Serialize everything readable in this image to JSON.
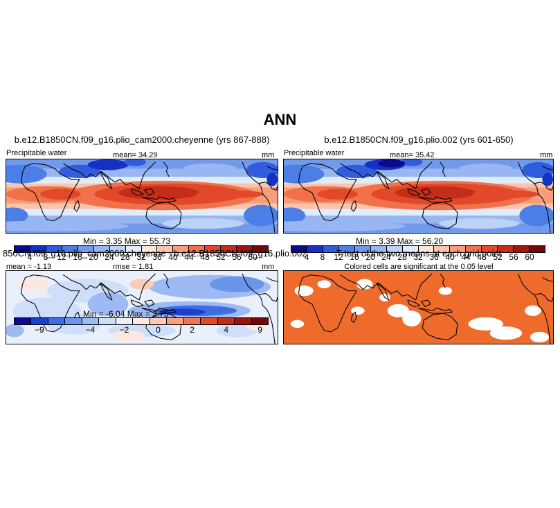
{
  "main_title": "ANN",
  "panels": {
    "p1": {
      "title": "b.e12.B1850CN.f09_g16.plio_cam2000.cheyenne (yrs 867-888)",
      "left_label": "Precipitable water",
      "mean_text": "mean=  34.29",
      "units": "mm",
      "minmax_text": "Min =    3.35  Max =    55.73"
    },
    "p2": {
      "title": "b.e12.B1850CN.f09_g16.plio.002 (yrs 601-650)",
      "left_label": "Precipitable water",
      "mean_text": "mean=  35.42",
      "units": "mm",
      "minmax_text": "Min =    3.39  Max =    56.20"
    },
    "p3": {
      "title": "850CN.f09_g16.plio_cam2000.cheyenne - b.e12.B1850CN.f09_g16.plio.002",
      "mean_text": "mean =  -1.13",
      "rmse_text": "rmse =   1.81",
      "units": "mm",
      "minmax_text": "Min =   -6.04  Max =    3.75"
    },
    "p4": {
      "title": "T-test of the two means at each grid point",
      "subtitle": "Colored cells are significant at the 0.05 level"
    }
  },
  "chart_data": [
    {
      "type": "heatmap",
      "panel": "p1",
      "title": "b.e12.B1850CN.f09_g16.plio_cam2000.cheyenne (yrs 867-888)",
      "variable": "Precipitable water",
      "units": "mm",
      "mean": 34.29,
      "min": 3.35,
      "max": 55.73,
      "levels": [
        4,
        8,
        12,
        16,
        20,
        24,
        28,
        32,
        36,
        40,
        44,
        48,
        52,
        56,
        60
      ],
      "colors": [
        "#0a0a8f",
        "#1531c4",
        "#2f5ddd",
        "#4b7fe6",
        "#7199ec",
        "#97b6f2",
        "#bcd2f6",
        "#e1ecfb",
        "#fde6dc",
        "#fbc4ac",
        "#f79d79",
        "#f0714a",
        "#e2482a",
        "#c42d19",
        "#9e160d",
        "#700a08"
      ]
    },
    {
      "type": "heatmap",
      "panel": "p2",
      "title": "b.e12.B1850CN.f09_g16.plio.002 (yrs 601-650)",
      "variable": "Precipitable water",
      "units": "mm",
      "mean": 35.42,
      "min": 3.39,
      "max": 56.2,
      "levels": [
        4,
        8,
        12,
        16,
        20,
        24,
        28,
        32,
        36,
        40,
        44,
        48,
        52,
        56,
        60
      ],
      "colors": [
        "#0a0a8f",
        "#1531c4",
        "#2f5ddd",
        "#4b7fe6",
        "#7199ec",
        "#97b6f2",
        "#bcd2f6",
        "#e1ecfb",
        "#fde6dc",
        "#fbc4ac",
        "#f79d79",
        "#f0714a",
        "#e2482a",
        "#c42d19",
        "#9e160d",
        "#700a08"
      ]
    },
    {
      "type": "heatmap",
      "panel": "p3",
      "title": "850CN.f09_g16.plio_cam2000.cheyenne - b.e12.B1850CN.f09_g16.plio.002",
      "units": "mm",
      "mean": -1.13,
      "rmse": 1.81,
      "min": -6.04,
      "max": 3.75,
      "levels": [
        -9,
        -4,
        -2,
        0,
        2,
        4,
        9
      ],
      "colors": [
        "#0a0a8f",
        "#1d40cc",
        "#3d6ddf",
        "#6b95ea",
        "#9dbaf2",
        "#cfdff9",
        "#e9f0fc",
        "#fde8df",
        "#fbcbb6",
        "#f7a27f",
        "#ef7650",
        "#e04a2b",
        "#c22d19",
        "#9a140c",
        "#700a08"
      ]
    },
    {
      "type": "heatmap",
      "panel": "p4",
      "title": "T-test of the two means at each grid point",
      "subtitle": "Colored cells are significant at the 0.05 level",
      "colors": [
        "#ee6b2b"
      ]
    }
  ]
}
